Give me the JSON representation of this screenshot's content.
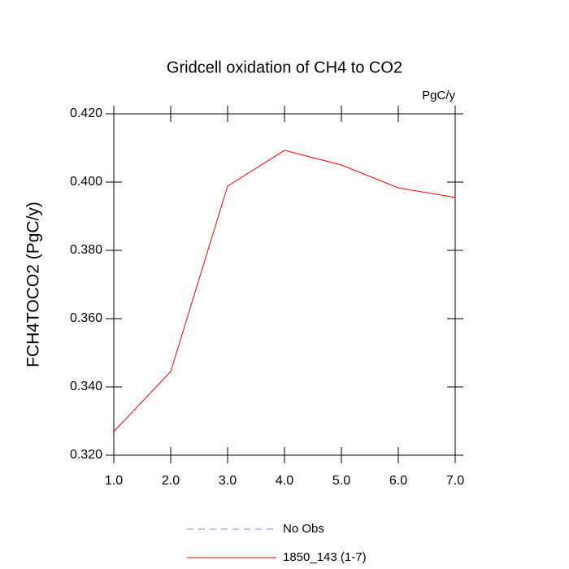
{
  "chart_data": {
    "type": "line",
    "title": "Gridcell oxidation of CH4 to CO2",
    "units": "PgC/y",
    "y_label": "FCH4TOCO2  (PgC/y)",
    "x": [
      1,
      2,
      3,
      4,
      5,
      6,
      7
    ],
    "series": [
      {
        "name": "No Obs",
        "color": "#8080ff",
        "dashed": true,
        "values": [
          null,
          null,
          null,
          null,
          null,
          null,
          null
        ]
      },
      {
        "name": "1850_143 (1-7)",
        "color": "#ff0000",
        "dashed": false,
        "values": [
          0.3269,
          0.3445,
          0.3988,
          0.4093,
          0.405,
          0.3983,
          0.3955
        ]
      }
    ],
    "xlim": [
      1,
      7
    ],
    "xticks": [
      {
        "value": 1,
        "label": "1.0"
      },
      {
        "value": 2,
        "label": "2.0"
      },
      {
        "value": 3,
        "label": "3.0"
      },
      {
        "value": 4,
        "label": "4.0"
      },
      {
        "value": 5,
        "label": "5.0"
      },
      {
        "value": 6,
        "label": "6.0"
      },
      {
        "value": 7,
        "label": "7.0"
      }
    ],
    "ylim": [
      0.32,
      0.42
    ],
    "yticks": [
      {
        "value": 0.32,
        "label": "0.320"
      },
      {
        "value": 0.34,
        "label": "0.340"
      },
      {
        "value": 0.36,
        "label": "0.360"
      },
      {
        "value": 0.38,
        "label": "0.380"
      },
      {
        "value": 0.4,
        "label": "0.400"
      },
      {
        "value": 0.42,
        "label": "0.420"
      }
    ],
    "grid": false
  }
}
